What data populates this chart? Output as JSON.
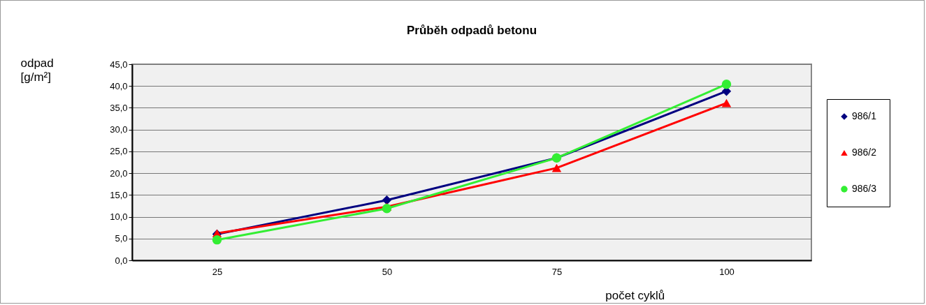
{
  "chart_data": {
    "type": "line",
    "title": "Průběh odpadů betonu",
    "xlabel": "počet cyklů",
    "ylabel": "odpad [g/m²]",
    "categories": [
      "25",
      "50",
      "75",
      "100"
    ],
    "series": [
      {
        "name": "986/1",
        "color": "#000080",
        "marker": "diamond",
        "values": [
          6.0,
          13.8,
          23.5,
          38.8
        ]
      },
      {
        "name": "986/2",
        "color": "#ff0000",
        "marker": "triangle",
        "values": [
          6.2,
          12.3,
          21.2,
          36.1
        ]
      },
      {
        "name": "986/3",
        "color": "#33ee33",
        "marker": "circle",
        "values": [
          4.7,
          11.9,
          23.5,
          40.4
        ]
      }
    ],
    "ylim": [
      0,
      45
    ],
    "yticks": [
      {
        "value": 0,
        "label": "0,0"
      },
      {
        "value": 5,
        "label": "5,0"
      },
      {
        "value": 10,
        "label": "10,0"
      },
      {
        "value": 15,
        "label": "15,0"
      },
      {
        "value": 20,
        "label": "20,0"
      },
      {
        "value": 25,
        "label": "25,0"
      },
      {
        "value": 30,
        "label": "30,0"
      },
      {
        "value": 35,
        "label": "35,0"
      },
      {
        "value": 40,
        "label": "40,0"
      },
      {
        "value": 45,
        "label": "45,0"
      }
    ],
    "grid": "y",
    "legend": "right"
  }
}
